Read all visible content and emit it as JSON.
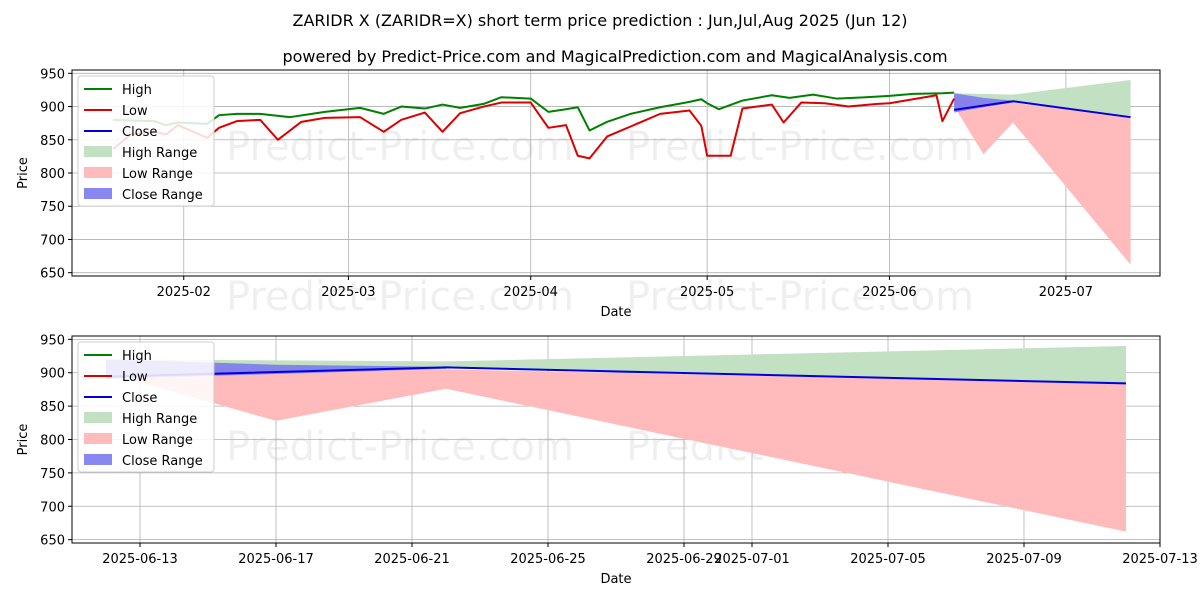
{
  "title": "ZARIDR X (ZARIDR=X) short term price prediction : Jun,Jul,Aug 2025 (Jun 12)",
  "subtitle": "powered by Predict-Price.com and MagicalPrediction.com and MagicalAnalysis.com",
  "watermark": "Predict-Price.com",
  "colors": {
    "high": "#008000",
    "low": "#dd0000",
    "close": "#0000dd",
    "high_range": "#c2e0c2",
    "low_range": "#ffbbbb",
    "close_range": "#7b7bee"
  },
  "chart_data": [
    {
      "type": "line",
      "xlabel": "Date",
      "ylabel": "Price",
      "xlim": [
        "2025-01-13",
        "2025-07-17"
      ],
      "ylim": [
        645,
        955
      ],
      "yticks": [
        650,
        700,
        750,
        800,
        850,
        900,
        950
      ],
      "xticks": [
        "2025-02",
        "2025-03",
        "2025-04",
        "2025-05",
        "2025-06",
        "2025-07"
      ],
      "xtick_dates": [
        "2025-02-01",
        "2025-03-01",
        "2025-04-01",
        "2025-05-01",
        "2025-06-01",
        "2025-07-01"
      ],
      "grid": true,
      "legend": "top-left",
      "legend_labels": [
        "High",
        "Low",
        "Close",
        "High Range",
        "Low Range",
        "Close Range"
      ],
      "series": [
        {
          "name": "High",
          "points": [
            [
              "2025-01-20",
              880
            ],
            [
              "2025-01-23",
              879
            ],
            [
              "2025-01-27",
              878
            ],
            [
              "2025-01-29",
              872
            ],
            [
              "2025-01-31",
              876
            ],
            [
              "2025-02-05",
              874
            ],
            [
              "2025-02-07",
              887
            ],
            [
              "2025-02-10",
              889
            ],
            [
              "2025-02-14",
              889
            ],
            [
              "2025-02-19",
              884
            ],
            [
              "2025-02-25",
              892
            ],
            [
              "2025-03-03",
              898
            ],
            [
              "2025-03-07",
              889
            ],
            [
              "2025-03-10",
              900
            ],
            [
              "2025-03-14",
              897
            ],
            [
              "2025-03-17",
              903
            ],
            [
              "2025-03-20",
              898
            ],
            [
              "2025-03-24",
              904
            ],
            [
              "2025-03-27",
              914
            ],
            [
              "2025-04-01",
              912
            ],
            [
              "2025-04-04",
              892
            ],
            [
              "2025-04-07",
              896
            ],
            [
              "2025-04-09",
              899
            ],
            [
              "2025-04-11",
              864
            ],
            [
              "2025-04-14",
              877
            ],
            [
              "2025-04-18",
              889
            ],
            [
              "2025-04-23",
              899
            ],
            [
              "2025-04-28",
              907
            ],
            [
              "2025-04-30",
              911
            ],
            [
              "2025-05-01",
              905
            ],
            [
              "2025-05-03",
              896
            ],
            [
              "2025-05-07",
              909
            ],
            [
              "2025-05-12",
              917
            ],
            [
              "2025-05-15",
              913
            ],
            [
              "2025-05-19",
              918
            ],
            [
              "2025-05-23",
              912
            ],
            [
              "2025-05-28",
              914
            ],
            [
              "2025-06-01",
              916
            ],
            [
              "2025-06-05",
              919
            ],
            [
              "2025-06-10",
              920
            ],
            [
              "2025-06-12",
              921
            ]
          ]
        },
        {
          "name": "Low",
          "points": [
            [
              "2025-01-20",
              836
            ],
            [
              "2025-01-23",
              858
            ],
            [
              "2025-01-27",
              862
            ],
            [
              "2025-01-29",
              858
            ],
            [
              "2025-01-31",
              872
            ],
            [
              "2025-02-05",
              853
            ],
            [
              "2025-02-07",
              868
            ],
            [
              "2025-02-10",
              878
            ],
            [
              "2025-02-14",
              880
            ],
            [
              "2025-02-17",
              850
            ],
            [
              "2025-02-21",
              877
            ],
            [
              "2025-02-25",
              883
            ],
            [
              "2025-03-03",
              884
            ],
            [
              "2025-03-07",
              862
            ],
            [
              "2025-03-10",
              880
            ],
            [
              "2025-03-14",
              891
            ],
            [
              "2025-03-17",
              862
            ],
            [
              "2025-03-20",
              890
            ],
            [
              "2025-03-24",
              900
            ],
            [
              "2025-03-27",
              906
            ],
            [
              "2025-04-01",
              906
            ],
            [
              "2025-04-04",
              868
            ],
            [
              "2025-04-07",
              872
            ],
            [
              "2025-04-09",
              826
            ],
            [
              "2025-04-11",
              822
            ],
            [
              "2025-04-14",
              855
            ],
            [
              "2025-04-18",
              870
            ],
            [
              "2025-04-23",
              889
            ],
            [
              "2025-04-28",
              894
            ],
            [
              "2025-04-30",
              871
            ],
            [
              "2025-05-01",
              826
            ],
            [
              "2025-05-05",
              826
            ],
            [
              "2025-05-07",
              897
            ],
            [
              "2025-05-12",
              903
            ],
            [
              "2025-05-14",
              876
            ],
            [
              "2025-05-17",
              906
            ],
            [
              "2025-05-21",
              905
            ],
            [
              "2025-05-25",
              900
            ],
            [
              "2025-05-30",
              904
            ],
            [
              "2025-06-01",
              905
            ],
            [
              "2025-06-05",
              911
            ],
            [
              "2025-06-09",
              917
            ],
            [
              "2025-06-10",
              878
            ],
            [
              "2025-06-12",
              912
            ]
          ]
        },
        {
          "name": "Close",
          "points": [
            [
              "2025-06-12",
              895
            ],
            [
              "2025-06-22",
              908
            ],
            [
              "2025-07-12",
              884
            ]
          ]
        }
      ],
      "ranges": [
        {
          "name": "High Range",
          "upper": [
            [
              "2025-06-12",
              920
            ],
            [
              "2025-06-22",
              918
            ],
            [
              "2025-07-12",
              940
            ]
          ],
          "lower": [
            [
              "2025-06-12",
              895
            ],
            [
              "2025-06-22",
              908
            ],
            [
              "2025-07-12",
              884
            ]
          ]
        },
        {
          "name": "Low Range",
          "upper": [
            [
              "2025-06-12",
              917
            ],
            [
              "2025-06-17",
              906
            ],
            [
              "2025-06-22",
              906
            ],
            [
              "2025-07-12",
              884
            ]
          ],
          "lower": [
            [
              "2025-06-12",
              900
            ],
            [
              "2025-06-17",
              828
            ],
            [
              "2025-06-22",
              876
            ],
            [
              "2025-07-12",
              662
            ]
          ]
        },
        {
          "name": "Close Range",
          "upper": [
            [
              "2025-06-12",
              920
            ],
            [
              "2025-06-17",
              913
            ],
            [
              "2025-06-22",
              909
            ]
          ],
          "lower": [
            [
              "2025-06-12",
              891
            ],
            [
              "2025-06-17",
              899
            ],
            [
              "2025-06-22",
              906
            ]
          ]
        }
      ]
    },
    {
      "type": "line",
      "xlabel": "Date",
      "ylabel": "Price",
      "xlim": [
        "2025-06-11",
        "2025-07-13"
      ],
      "ylim": [
        645,
        955
      ],
      "yticks": [
        650,
        700,
        750,
        800,
        850,
        900,
        950
      ],
      "xticks": [
        "2025-06-13",
        "2025-06-17",
        "2025-06-21",
        "2025-06-25",
        "2025-06-29",
        "2025-07-01",
        "2025-07-05",
        "2025-07-09",
        "2025-07-13"
      ],
      "xtick_dates": [
        "2025-06-13",
        "2025-06-17",
        "2025-06-21",
        "2025-06-25",
        "2025-06-29",
        "2025-07-01",
        "2025-07-05",
        "2025-07-09",
        "2025-07-13"
      ],
      "grid": true,
      "legend": "top-left",
      "legend_labels": [
        "High",
        "Low",
        "Close",
        "High Range",
        "Low Range",
        "Close Range"
      ],
      "series": [
        {
          "name": "High",
          "points": []
        },
        {
          "name": "Low",
          "points": []
        },
        {
          "name": "Close",
          "points": [
            [
              "2025-06-12",
              894
            ],
            [
              "2025-06-22",
              908
            ],
            [
              "2025-07-12",
              884
            ]
          ]
        }
      ],
      "ranges": [
        {
          "name": "High Range",
          "upper": [
            [
              "2025-06-12",
              920
            ],
            [
              "2025-06-22",
              917
            ],
            [
              "2025-07-12",
              940
            ]
          ],
          "lower": [
            [
              "2025-06-12",
              895
            ],
            [
              "2025-06-22",
              908
            ],
            [
              "2025-07-12",
              884
            ]
          ]
        },
        {
          "name": "Low Range",
          "upper": [
            [
              "2025-06-12",
              917
            ],
            [
              "2025-06-17",
              905
            ],
            [
              "2025-06-22",
              905
            ],
            [
              "2025-07-12",
              884
            ]
          ],
          "lower": [
            [
              "2025-06-12",
              900
            ],
            [
              "2025-06-17",
              828
            ],
            [
              "2025-06-22",
              876
            ],
            [
              "2025-07-12",
              662
            ]
          ]
        },
        {
          "name": "Close Range",
          "upper": [
            [
              "2025-06-12",
              920
            ],
            [
              "2025-06-17",
              912
            ],
            [
              "2025-06-22",
              909
            ]
          ],
          "lower": [
            [
              "2025-06-12",
              891
            ],
            [
              "2025-06-17",
              898
            ],
            [
              "2025-06-22",
              906
            ]
          ]
        }
      ]
    }
  ]
}
